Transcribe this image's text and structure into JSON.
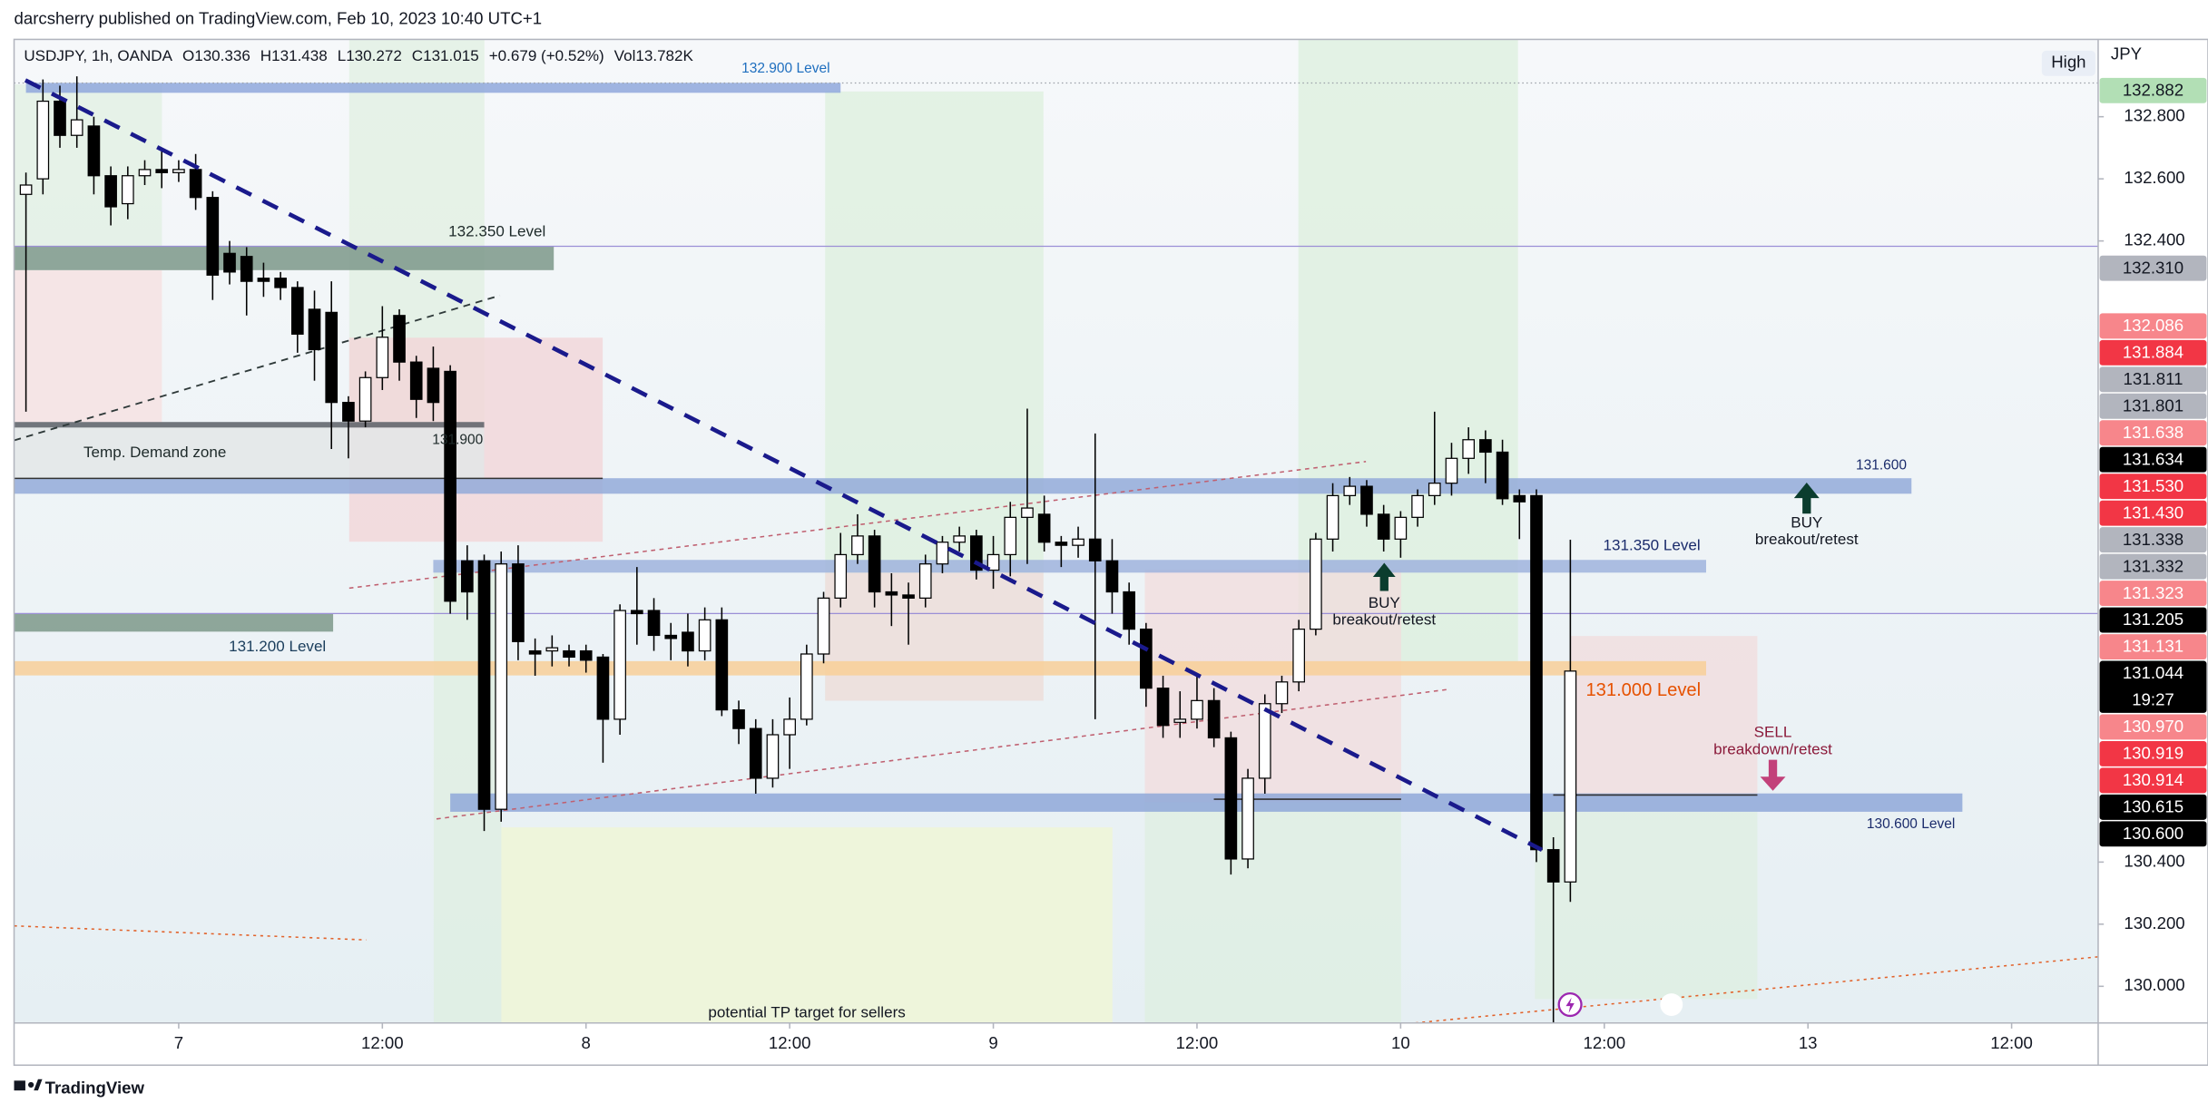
{
  "header": {
    "attribution": "darcsherry published on TradingView.com, Feb 10, 2023 10:40 UTC+1"
  },
  "footer": {
    "brand": "TradingView"
  },
  "chart_data": {
    "type": "candlestick",
    "legend": {
      "symbol": "USDJPY, 1h, OANDA",
      "open": "O130.336",
      "high": "H131.438",
      "low": "L130.272",
      "close": "C131.015",
      "change": "+0.679 (+0.52%)",
      "volume": "Vol13.782K"
    },
    "currency": "JPY",
    "scale_button": "High",
    "up_color": "#ffffff",
    "down_color": "#000000",
    "border_color": "#000000",
    "xlim": [
      -9.7,
      113.1
    ],
    "xticks": [
      {
        "value": 0,
        "label": "7"
      },
      {
        "value": 12,
        "label": "12:00"
      },
      {
        "value": 24,
        "label": "8"
      },
      {
        "value": 36,
        "label": "12:00"
      },
      {
        "value": 48,
        "label": "9"
      },
      {
        "value": 60,
        "label": "12:00"
      },
      {
        "value": 72,
        "label": "10"
      },
      {
        "value": 84,
        "label": "12:00"
      },
      {
        "value": 96,
        "label": "13"
      },
      {
        "value": 108,
        "label": "12:00"
      }
    ],
    "ylim": [
      129.882,
      133.049
    ],
    "yticks": [
      {
        "value": 132.8,
        "label": "132.800"
      },
      {
        "value": 132.6,
        "label": "132.600"
      },
      {
        "value": 132.4,
        "label": "132.400"
      },
      {
        "value": 130.4,
        "label": "130.400"
      },
      {
        "value": 130.2,
        "label": "130.200"
      },
      {
        "value": 130.0,
        "label": "130.000"
      }
    ],
    "grid": false,
    "x": [
      -9,
      -8,
      -7,
      -6,
      -5,
      -4,
      -3,
      -2,
      -1,
      0,
      1,
      2,
      3,
      4,
      5,
      6,
      7,
      8,
      9,
      10,
      11,
      12,
      13,
      14,
      15,
      16,
      17,
      18,
      19,
      20,
      21,
      22,
      23,
      24,
      25,
      26,
      27,
      28,
      29,
      30,
      31,
      32,
      33,
      34,
      35,
      36,
      37,
      38,
      39,
      40,
      41,
      42,
      43,
      44,
      45,
      46,
      47,
      48,
      49,
      50,
      51,
      52,
      53,
      54,
      55,
      56,
      57,
      58,
      59,
      60,
      61,
      62,
      63,
      64,
      65,
      66,
      67,
      68,
      69,
      70,
      71,
      72,
      73,
      74,
      75,
      76,
      77,
      78,
      79,
      80,
      81,
      82
    ],
    "open": [
      132.55,
      132.6,
      132.85,
      132.74,
      132.77,
      132.61,
      132.52,
      132.61,
      132.63,
      132.62,
      132.63,
      132.54,
      132.36,
      132.35,
      132.28,
      132.28,
      132.25,
      132.18,
      132.17,
      131.88,
      131.82,
      131.96,
      132.16,
      132.01,
      131.99,
      131.98,
      131.37,
      131.37,
      130.57,
      131.36,
      131.08,
      131.08,
      131.08,
      131.08,
      131.06,
      130.86,
      131.21,
      131.21,
      131.13,
      131.14,
      131.08,
      131.18,
      130.89,
      130.83,
      130.67,
      130.81,
      130.86,
      131.07,
      131.25,
      131.39,
      131.45,
      131.27,
      131.26,
      131.25,
      131.36,
      131.43,
      131.45,
      131.34,
      131.39,
      131.51,
      131.52,
      131.43,
      131.42,
      131.44,
      131.37,
      131.27,
      131.15,
      130.96,
      130.85,
      130.86,
      130.92,
      130.8,
      130.41,
      130.67,
      130.91,
      130.98,
      131.15,
      131.44,
      131.58,
      131.61,
      131.52,
      131.44,
      131.51,
      131.58,
      131.62,
      131.7,
      131.76,
      131.72,
      131.58,
      131.58,
      130.44,
      130.336
    ],
    "high": [
      132.62,
      132.92,
      132.9,
      132.93,
      132.8,
      132.64,
      132.64,
      132.66,
      132.69,
      132.66,
      132.68,
      132.56,
      132.4,
      132.38,
      132.33,
      132.3,
      132.27,
      132.24,
      132.27,
      131.9,
      131.98,
      132.19,
      132.18,
      132.03,
      132.06,
      132.0,
      131.42,
      131.39,
      131.4,
      131.42,
      131.12,
      131.13,
      131.1,
      131.1,
      131.07,
      131.23,
      131.35,
      131.25,
      131.17,
      131.2,
      131.22,
      131.22,
      130.92,
      130.86,
      130.86,
      130.93,
      131.1,
      131.27,
      131.46,
      131.52,
      131.47,
      131.33,
      131.3,
      131.39,
      131.45,
      131.48,
      131.47,
      131.45,
      131.56,
      131.86,
      131.58,
      131.45,
      131.48,
      131.78,
      131.44,
      131.3,
      131.17,
      131.0,
      130.95,
      131.0,
      130.96,
      130.82,
      130.7,
      130.94,
      131.0,
      131.18,
      131.46,
      131.62,
      131.64,
      131.63,
      131.55,
      131.53,
      131.6,
      131.85,
      131.75,
      131.8,
      131.79,
      131.76,
      131.6,
      131.6,
      130.48,
      131.438
    ],
    "low": [
      131.85,
      132.55,
      132.7,
      132.7,
      132.55,
      132.45,
      132.47,
      132.58,
      132.57,
      132.59,
      132.5,
      132.21,
      132.26,
      132.16,
      132.22,
      132.21,
      132.04,
      131.95,
      131.73,
      131.7,
      131.8,
      131.92,
      131.95,
      131.83,
      131.82,
      131.2,
      131.18,
      130.5,
      130.53,
      131.05,
      131.0,
      131.03,
      131.03,
      131.01,
      130.72,
      130.81,
      131.1,
      131.08,
      131.05,
      131.03,
      131.05,
      130.87,
      130.78,
      130.62,
      130.64,
      130.7,
      130.84,
      131.04,
      131.22,
      131.36,
      131.22,
      131.16,
      131.1,
      131.22,
      131.33,
      131.4,
      131.31,
      131.28,
      131.32,
      131.36,
      131.4,
      131.35,
      131.38,
      130.86,
      131.2,
      131.1,
      130.9,
      130.8,
      130.8,
      130.83,
      130.77,
      130.36,
      130.38,
      130.62,
      130.88,
      130.95,
      131.13,
      131.4,
      131.55,
      131.48,
      131.4,
      131.38,
      131.48,
      131.55,
      131.58,
      131.65,
      131.62,
      131.55,
      131.44,
      130.4,
      129.88,
      130.272
    ],
    "close": [
      132.58,
      132.85,
      132.74,
      132.79,
      132.61,
      132.51,
      132.61,
      132.63,
      132.62,
      132.63,
      132.54,
      132.29,
      132.3,
      132.27,
      132.27,
      132.25,
      132.1,
      132.05,
      131.88,
      131.82,
      131.96,
      132.09,
      132.01,
      131.89,
      131.88,
      131.24,
      131.27,
      130.57,
      131.36,
      131.11,
      131.07,
      131.09,
      131.06,
      131.05,
      130.86,
      131.21,
      131.2,
      131.13,
      131.12,
      131.08,
      131.18,
      130.89,
      130.83,
      130.67,
      130.81,
      130.86,
      131.07,
      131.25,
      131.39,
      131.45,
      131.27,
      131.26,
      131.25,
      131.36,
      131.43,
      131.45,
      131.34,
      131.39,
      131.51,
      131.54,
      131.43,
      131.42,
      131.44,
      131.37,
      131.27,
      131.15,
      130.96,
      130.84,
      130.86,
      130.92,
      130.8,
      130.41,
      130.67,
      130.91,
      130.98,
      131.15,
      131.44,
      131.58,
      131.61,
      131.52,
      131.44,
      131.51,
      131.58,
      131.62,
      131.7,
      131.76,
      131.72,
      131.57,
      131.56,
      130.44,
      130.336,
      131.015
    ],
    "levels": [
      {
        "label": "132.900 Level",
        "top": 132.909,
        "bottom": 132.877,
        "start": -9.0,
        "end": 39.0,
        "color": "#8fa8dc"
      },
      {
        "label": "132.350 Level",
        "top": 132.383,
        "bottom": 132.306,
        "start": -9.7,
        "end": 22.1,
        "color": "#7d988a"
      },
      {
        "label": "131.900",
        "top": 131.817,
        "bottom": 131.799,
        "start": -9.7,
        "end": 18.0,
        "color": "#5a5f66"
      },
      {
        "label": "Temp. Demand zone",
        "top": 131.799,
        "bottom": 131.635,
        "start": -9.7,
        "end": 18.0,
        "color": "#e3e6e8"
      },
      {
        "label": "131.600",
        "top": 131.636,
        "bottom": 131.586,
        "start": -9.7,
        "end": 102.1,
        "color": "#93aad9"
      },
      {
        "label": "131.350 Level",
        "top": 131.373,
        "bottom": 131.332,
        "start": 15.0,
        "end": 90.0,
        "color": "#9fb3dd"
      },
      {
        "label": "131.200 Level",
        "top": 131.201,
        "bottom": 131.142,
        "start": -9.7,
        "end": 9.1,
        "color": "#7d988a"
      },
      {
        "label": "131.000 Level",
        "top": 131.047,
        "bottom": 131.001,
        "start": -9.7,
        "end": 90.0,
        "color": "#f8cf98"
      },
      {
        "label": "130.600 Level",
        "top": 130.621,
        "bottom": 130.562,
        "start": 16.0,
        "end": 105.1,
        "color": "#8fa8d8"
      }
    ],
    "annotations": {
      "buy_1": "BUY",
      "buy_1_note": "breakout/retest",
      "buy_2": "BUY",
      "buy_2_note": "breakout/retest",
      "sell": "SELL",
      "sell_note": "breakdown/retest",
      "tp_target": "potential TP target for sellers"
    },
    "price_tags": [
      {
        "value": 132.882,
        "label": "132.882",
        "color": "#b2dfb5",
        "text_color": "#131722"
      },
      {
        "value": 132.31,
        "label": "132.310",
        "color": "#b2b5be",
        "text_color": "#131722"
      },
      {
        "value": 132.086,
        "label": "132.086",
        "color": "#f7868b",
        "text_color": "#ffffff"
      },
      {
        "value": 131.884,
        "label": "131.884",
        "color": "#f23645",
        "text_color": "#ffffff"
      },
      {
        "value": 131.811,
        "label": "131.811",
        "color": "#b2b5be",
        "text_color": "#131722"
      },
      {
        "value": 131.801,
        "label": "131.801",
        "color": "#b2b5be",
        "text_color": "#131722"
      },
      {
        "value": 131.638,
        "label": "131.638",
        "color": "#f7868b",
        "text_color": "#ffffff"
      },
      {
        "value": 131.634,
        "label": "131.634",
        "color": "#000000",
        "text_color": "#ffffff"
      },
      {
        "value": 131.53,
        "label": "131.530",
        "color": "#f23645",
        "text_color": "#ffffff"
      },
      {
        "value": 131.43,
        "label": "131.430",
        "color": "#f23645",
        "text_color": "#ffffff"
      },
      {
        "value": 131.338,
        "label": "131.338",
        "color": "#b2b5be",
        "text_color": "#131722"
      },
      {
        "value": 131.332,
        "label": "131.332",
        "color": "#b2b5be",
        "text_color": "#131722"
      },
      {
        "value": 131.323,
        "label": "131.323",
        "color": "#f7868b",
        "text_color": "#ffffff"
      },
      {
        "value": 131.205,
        "label": "131.205",
        "color": "#000000",
        "text_color": "#ffffff"
      },
      {
        "value": 131.131,
        "label": "131.131",
        "color": "#f7868b",
        "text_color": "#ffffff"
      },
      {
        "value": 131.044,
        "label": "131.044",
        "color": "#000000",
        "text_color": "#ffffff",
        "countdown": "19:27"
      },
      {
        "value": 130.97,
        "label": "130.970",
        "color": "#f7868b",
        "text_color": "#ffffff"
      },
      {
        "value": 130.919,
        "label": "130.919",
        "color": "#f23645",
        "text_color": "#ffffff"
      },
      {
        "value": 130.914,
        "label": "130.914",
        "color": "#f23645",
        "text_color": "#ffffff"
      },
      {
        "value": 130.615,
        "label": "130.615",
        "color": "#000000",
        "text_color": "#ffffff"
      },
      {
        "value": 130.6,
        "label": "130.600",
        "color": "#000000",
        "text_color": "#ffffff"
      }
    ]
  }
}
